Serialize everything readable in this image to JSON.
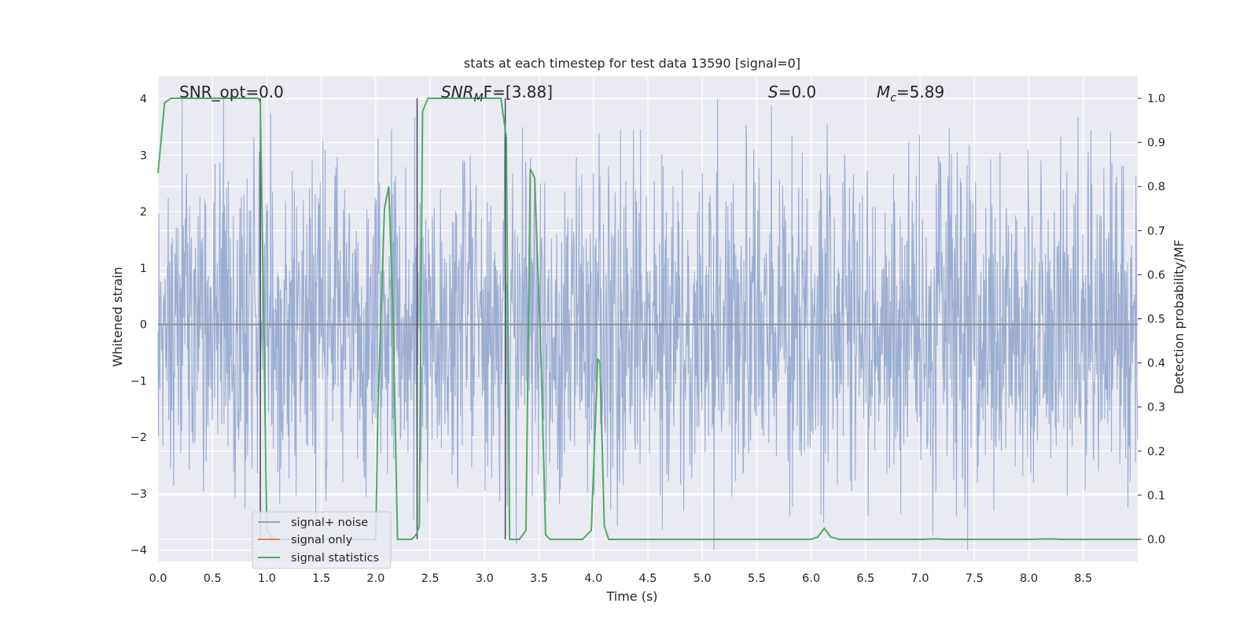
{
  "chart_data": {
    "type": "line",
    "title": "stats at each timestep for test data 13590 [signal=0]",
    "xlabel": "Time (s)",
    "ylabel": "Whitened strain",
    "y2label": "Detection probability/MF",
    "xlim": [
      0.0,
      9.0
    ],
    "ylim": [
      -4.2,
      4.4
    ],
    "y2lim": [
      -0.05,
      1.05
    ],
    "x_ticks": [
      "0.0",
      "0.5",
      "1.0",
      "1.5",
      "2.0",
      "2.5",
      "3.0",
      "3.5",
      "4.0",
      "4.5",
      "5.0",
      "5.5",
      "6.0",
      "6.5",
      "7.0",
      "7.5",
      "8.0",
      "8.5"
    ],
    "y_ticks": [
      "4",
      "3",
      "2",
      "1",
      "0",
      "−1",
      "−2",
      "−3",
      "−4"
    ],
    "y2_ticks": [
      "1.0",
      "0.9",
      "0.8",
      "0.7",
      "0.6",
      "0.5",
      "0.4",
      "0.3",
      "0.2",
      "0.1",
      "0.0"
    ],
    "grid": true,
    "legend_position": "lower-left",
    "annotations": {
      "snr_opt": "SNR_opt=0.0",
      "snr_mf_prefix": "SNR",
      "snr_mf_sub": "M",
      "snr_mf_suffix": "F=[3.88]",
      "s_var": "S",
      "s_val": "=0.0",
      "mc_var": "M",
      "mc_sub": "c",
      "mc_val": "=5.89"
    },
    "vertical_markers_s": [
      0.94,
      2.38,
      3.19
    ],
    "series": [
      {
        "name": "signal+ noise",
        "color": "#8ea2cc",
        "description_stats": {
          "typical_amplitude": 1.7,
          "max_abs": 4.0,
          "samples": 2200
        }
      },
      {
        "name": "signal only",
        "color": "#dd8452",
        "values_note": "flat at zero",
        "x": [
          0.0,
          9.0
        ],
        "y": [
          0.0,
          0.0
        ]
      },
      {
        "name": "signal statistics",
        "color": "#55a868",
        "axis": "right",
        "x": [
          0.0,
          0.06,
          0.12,
          0.2,
          0.3,
          0.5,
          0.7,
          0.86,
          0.92,
          0.94,
          1.0,
          1.06,
          1.12,
          1.2,
          1.5,
          1.8,
          2.0,
          2.02,
          2.08,
          2.12,
          2.16,
          2.2,
          2.3,
          2.33,
          2.37,
          2.4,
          2.43,
          2.48,
          2.6,
          2.8,
          3.0,
          3.12,
          3.15,
          3.2,
          3.23,
          3.26,
          3.32,
          3.38,
          3.42,
          3.46,
          3.52,
          3.56,
          3.6,
          3.62,
          3.7,
          3.9,
          3.98,
          4.04,
          4.06,
          4.1,
          4.14,
          4.2,
          4.5,
          5.0,
          5.5,
          6.0,
          6.06,
          6.12,
          6.18,
          6.26,
          6.5,
          7.0,
          7.15,
          7.25,
          8.0,
          8.2,
          8.3,
          8.8,
          9.0
        ],
        "y": [
          0.83,
          0.99,
          1.0,
          1.0,
          1.0,
          1.0,
          1.0,
          1.0,
          1.0,
          0.99,
          0.02,
          0.0,
          0.0,
          0.0,
          0.0,
          0.0,
          0.0,
          0.3,
          0.75,
          0.8,
          0.5,
          0.0,
          0.0,
          0.0,
          0.01,
          0.03,
          0.97,
          1.0,
          1.0,
          1.0,
          1.0,
          1.0,
          1.0,
          0.91,
          0.0,
          0.0,
          0.0,
          0.02,
          0.84,
          0.82,
          0.4,
          0.01,
          0.0,
          0.0,
          0.0,
          0.0,
          0.02,
          0.41,
          0.4,
          0.03,
          0.0,
          0.0,
          0.0,
          0.0,
          0.0,
          0.0,
          0.005,
          0.025,
          0.005,
          0.0,
          0.0,
          0.0,
          0.001,
          0.0,
          0.0,
          0.001,
          0.0,
          0.0,
          0.0
        ]
      }
    ]
  }
}
